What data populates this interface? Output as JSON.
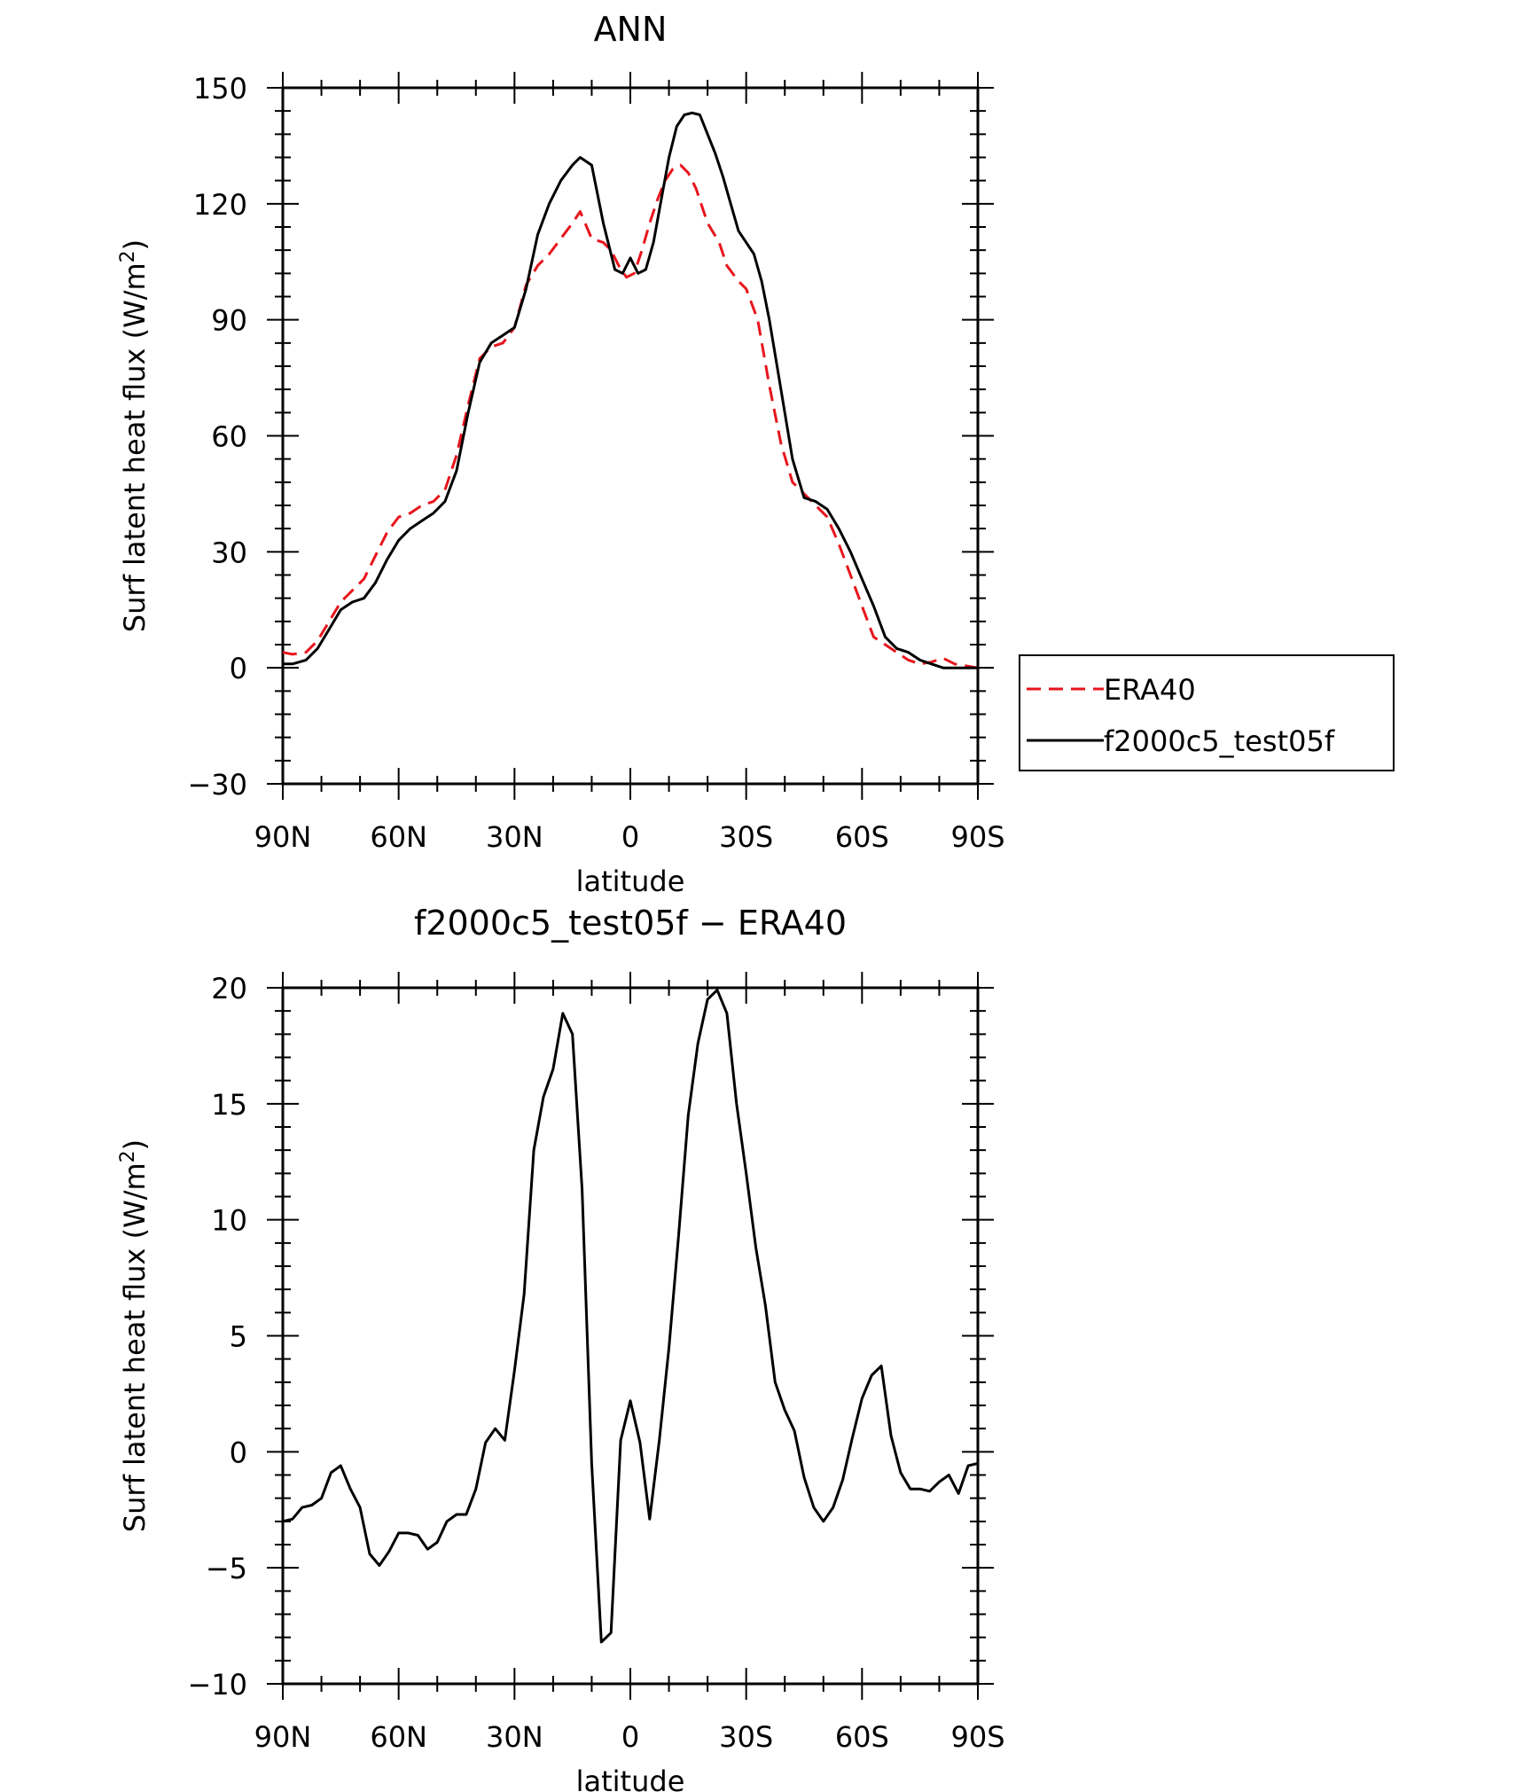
{
  "chart_data": [
    {
      "type": "line",
      "title": "ANN",
      "xlabel": "latitude",
      "ylabel_main": "Surf latent heat flux (W/m",
      "ylabel_sup": "2",
      "ylabel_close": ")",
      "xlim": [
        90,
        -90
      ],
      "ylim": [
        -30,
        150
      ],
      "x_ticks": [
        {
          "value": 90,
          "label": "90N"
        },
        {
          "value": 60,
          "label": "60N"
        },
        {
          "value": 30,
          "label": "30N"
        },
        {
          "value": 0,
          "label": "0"
        },
        {
          "value": -30,
          "label": "30S"
        },
        {
          "value": -60,
          "label": "60S"
        },
        {
          "value": -90,
          "label": "90S"
        }
      ],
      "y_ticks": [
        {
          "value": 150,
          "label": "150"
        },
        {
          "value": 120,
          "label": "120"
        },
        {
          "value": 90,
          "label": "90"
        },
        {
          "value": 60,
          "label": "60"
        },
        {
          "value": 30,
          "label": "30"
        },
        {
          "value": 0,
          "label": "0"
        },
        {
          "value": -30,
          "label": "−30"
        }
      ],
      "grid": false,
      "legend_placement": "right",
      "series": [
        {
          "name": "ERA40",
          "color": "#e8141c",
          "dash": true,
          "x": [
            90,
            87.5,
            84,
            81,
            78,
            75,
            72,
            69,
            66,
            63,
            60,
            57,
            54,
            51,
            48,
            45,
            42,
            39,
            36,
            33,
            30,
            27,
            24,
            21,
            18,
            15,
            13,
            10,
            7,
            5,
            3,
            1,
            -1,
            -3,
            -5,
            -7,
            -9,
            -11,
            -13,
            -15,
            -17,
            -20,
            -23,
            -25,
            -28,
            -30,
            -33,
            -36,
            -39,
            -42,
            -45,
            -48,
            -51,
            -54,
            -57,
            -60,
            -63,
            -66,
            -69,
            -72,
            -75,
            -78,
            -81,
            -84,
            -87,
            -90
          ],
          "y": [
            4,
            3.5,
            4,
            7,
            12,
            17,
            20,
            23,
            29,
            35,
            39,
            40,
            42,
            43,
            46,
            55,
            68,
            80,
            83,
            84,
            88,
            99,
            104,
            107,
            111,
            115,
            118,
            111,
            110,
            108,
            104,
            101,
            102,
            108,
            115,
            121,
            126,
            129,
            130,
            128,
            124,
            115,
            110,
            104,
            100,
            98,
            90,
            73,
            58,
            48,
            45,
            42,
            39,
            32,
            24,
            16,
            8,
            6,
            4,
            2,
            1,
            1.5,
            2.5,
            1,
            0.5,
            0
          ]
        },
        {
          "name": "f2000c5_test05f",
          "color": "#000000",
          "dash": false,
          "x": [
            90,
            87.5,
            84,
            81,
            78,
            75,
            72,
            69,
            66,
            63,
            60,
            57,
            54,
            51,
            48,
            45,
            42,
            39,
            36,
            33,
            30,
            27,
            24,
            21,
            18,
            15,
            13,
            10,
            7,
            4,
            2,
            0,
            -2,
            -4,
            -6,
            -8,
            -10,
            -12,
            -14,
            -16,
            -18,
            -20,
            -22,
            -24,
            -26,
            -28,
            -30,
            -32,
            -34,
            -36,
            -39,
            -42,
            -45,
            -48,
            -51,
            -54,
            -57,
            -60,
            -63,
            -66,
            -69,
            -72,
            -75,
            -78,
            -81,
            -84,
            -87,
            -90
          ],
          "y": [
            1,
            1,
            2,
            5,
            10,
            15,
            17,
            18,
            22,
            28,
            33,
            36,
            38,
            40,
            43,
            51,
            66,
            79,
            84,
            86,
            88,
            98,
            112,
            120,
            126,
            130,
            132,
            130,
            115,
            103,
            102,
            106,
            102,
            103,
            110,
            121,
            132,
            140,
            143,
            143.5,
            143,
            138,
            133,
            127,
            120,
            113,
            110,
            107,
            100,
            90,
            72,
            54,
            44,
            43,
            41,
            36,
            30,
            23,
            16,
            8,
            5,
            4,
            2,
            1,
            0,
            0,
            0,
            0
          ]
        }
      ]
    },
    {
      "type": "line",
      "title": "f2000c5_test05f − ERA40",
      "xlabel": "latitude",
      "ylabel_main": "Surf latent heat flux (W/m",
      "ylabel_sup": "2",
      "ylabel_close": ")",
      "xlim": [
        90,
        -90
      ],
      "ylim": [
        -10,
        20
      ],
      "x_ticks": [
        {
          "value": 90,
          "label": "90N"
        },
        {
          "value": 60,
          "label": "60N"
        },
        {
          "value": 30,
          "label": "30N"
        },
        {
          "value": 0,
          "label": "0"
        },
        {
          "value": -30,
          "label": "30S"
        },
        {
          "value": -60,
          "label": "60S"
        },
        {
          "value": -90,
          "label": "90S"
        }
      ],
      "y_ticks": [
        {
          "value": 20,
          "label": "20"
        },
        {
          "value": 15,
          "label": "15"
        },
        {
          "value": 10,
          "label": "10"
        },
        {
          "value": 5,
          "label": "5"
        },
        {
          "value": 0,
          "label": "0"
        },
        {
          "value": -5,
          "label": "−5"
        },
        {
          "value": -10,
          "label": "−10"
        }
      ],
      "grid": false,
      "series": [
        {
          "color": "#000000",
          "dash": false,
          "x": [
            90,
            87.5,
            85,
            82.5,
            80,
            77.5,
            75,
            72.5,
            70,
            67.5,
            65,
            62.5,
            60,
            57.5,
            55,
            52.5,
            50,
            47.5,
            45,
            42.5,
            40,
            37.5,
            35,
            32.5,
            30,
            27.5,
            25,
            22.5,
            20,
            17.5,
            15,
            12.5,
            10,
            7.5,
            5,
            2.5,
            0,
            -2.5,
            -5,
            -7.5,
            -10,
            -12.5,
            -15,
            -17.5,
            -20,
            -22.5,
            -25,
            -27.5,
            -30,
            -32.5,
            -35,
            -37.5,
            -40,
            -42.5,
            -45,
            -47.5,
            -50,
            -52.5,
            -55,
            -57.5,
            -60,
            -62.5,
            -65,
            -67.5,
            -70,
            -72.5,
            -75,
            -77.5,
            -80,
            -82.5,
            -85,
            -87.5,
            -90
          ],
          "y": [
            -3,
            -2.9,
            -2.4,
            -2.3,
            -2,
            -0.9,
            -0.6,
            -1.6,
            -2.4,
            -4.4,
            -4.9,
            -4.3,
            -3.5,
            -3.5,
            -3.6,
            -4.2,
            -3.9,
            -3,
            -2.7,
            -2.7,
            -1.6,
            0.4,
            1,
            0.5,
            3.5,
            6.8,
            13,
            15.3,
            16.5,
            18.9,
            18,
            11.3,
            -0.5,
            -8.2,
            -7.8,
            0.5,
            2.2,
            0.4,
            -2.9,
            0.5,
            4.5,
            9.3,
            14.5,
            17.6,
            19.5,
            19.9,
            18.9,
            15,
            12,
            8.8,
            6.3,
            3,
            1.8,
            0.9,
            -1.1,
            -2.4,
            -3,
            -2.4,
            -1.2,
            0.6,
            2.3,
            3.3,
            3.7,
            0.7,
            -0.9,
            -1.6,
            -1.6,
            -1.7,
            -1.3,
            -1,
            -1.8,
            -0.6,
            -0.5
          ]
        }
      ]
    }
  ]
}
